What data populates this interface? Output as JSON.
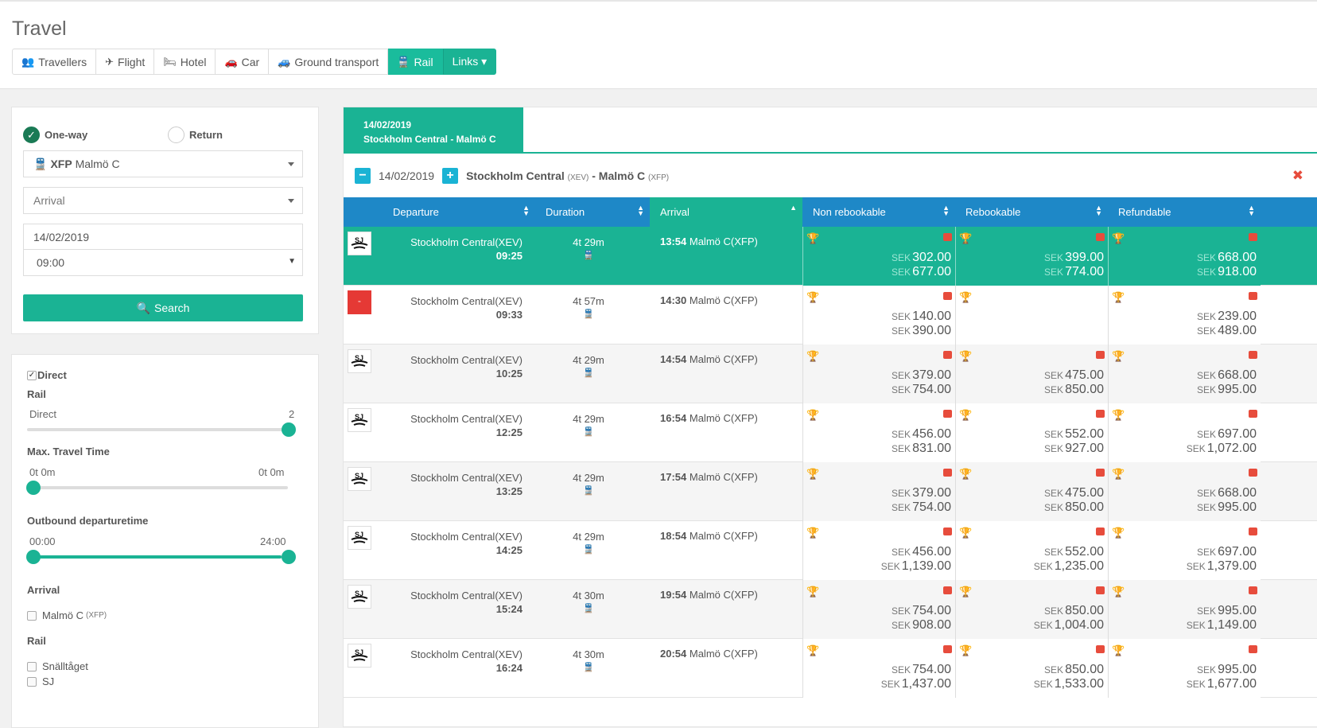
{
  "page_title": "Travel",
  "nav": [
    {
      "label": "Travellers",
      "icon": "users-icon",
      "glyph": "👥",
      "active": false
    },
    {
      "label": "Flight",
      "icon": "plane-icon",
      "glyph": "✈",
      "active": false
    },
    {
      "label": "Hotel",
      "icon": "bed-icon",
      "glyph": "🛏",
      "active": false
    },
    {
      "label": "Car",
      "icon": "car-icon",
      "glyph": "🚗",
      "active": false
    },
    {
      "label": "Ground transport",
      "icon": "car-icon",
      "glyph": "🚙",
      "active": false
    },
    {
      "label": "Rail",
      "icon": "train-icon",
      "glyph": "🚆",
      "active": true
    },
    {
      "label": "Links ▾",
      "icon": "",
      "glyph": "",
      "active": false
    }
  ],
  "search": {
    "oneway_label": "One-way",
    "return_label": "Return",
    "from_code": "XFP",
    "from_name": "Malmö C",
    "arrival_placeholder": "Arrival",
    "date": "14/02/2019",
    "time": "09:00",
    "button": "Search"
  },
  "filters": {
    "direct_label": "Direct",
    "rail_label": "Rail",
    "direct_small": "Direct",
    "direct_max": "2",
    "max_travel_time": "Max. Travel Time",
    "tt_min": "0t 0m",
    "tt_max": "0t 0m",
    "outbound_label": "Outbound departuretime",
    "out_min": "00:00",
    "out_max": "24:00",
    "arrival_label": "Arrival",
    "arrival_option": "Malmö C",
    "arrival_option_code": "(XFP)",
    "rail_label2": "Rail",
    "rail_options": [
      "Snälltåget",
      "SJ"
    ]
  },
  "results": {
    "tab_date": "14/02/2019",
    "tab_route": "Stockholm Central - Malmö C",
    "route_date": "14/02/2019",
    "route_from": "Stockholm Central",
    "route_from_code": "(XEV)",
    "route_sep": "-",
    "route_to": "Malmö C",
    "route_to_code": "(XFP)",
    "headers": {
      "departure": "Departure",
      "duration": "Duration",
      "arrival": "Arrival",
      "non_rebookable": "Non rebookable",
      "rebookable": "Rebookable",
      "refundable": "Refundable"
    },
    "currency": "SEK",
    "rows": [
      {
        "operator": "SJ",
        "dep_station": "Stockholm Central(XEV)",
        "dep_time": "09:25",
        "duration": "4t 29m",
        "arr_time": "13:54",
        "arr_station": "Malmö C(XFP)",
        "non": [
          "302.00",
          "677.00"
        ],
        "reb": [
          "399.00",
          "774.00"
        ],
        "ref": [
          "668.00",
          "918.00"
        ]
      },
      {
        "operator": "Snälltåget",
        "dep_station": "Stockholm Central(XEV)",
        "dep_time": "09:33",
        "duration": "4t 57m",
        "arr_time": "14:30",
        "arr_station": "Malmö C(XFP)",
        "non": [
          "140.00",
          "390.00"
        ],
        "reb": [],
        "ref": [
          "239.00",
          "489.00"
        ]
      },
      {
        "operator": "SJ",
        "dep_station": "Stockholm Central(XEV)",
        "dep_time": "10:25",
        "duration": "4t 29m",
        "arr_time": "14:54",
        "arr_station": "Malmö C(XFP)",
        "non": [
          "379.00",
          "754.00"
        ],
        "reb": [
          "475.00",
          "850.00"
        ],
        "ref": [
          "668.00",
          "995.00"
        ]
      },
      {
        "operator": "SJ",
        "dep_station": "Stockholm Central(XEV)",
        "dep_time": "12:25",
        "duration": "4t 29m",
        "arr_time": "16:54",
        "arr_station": "Malmö C(XFP)",
        "non": [
          "456.00",
          "831.00"
        ],
        "reb": [
          "552.00",
          "927.00"
        ],
        "ref": [
          "697.00",
          "1,072.00"
        ]
      },
      {
        "operator": "SJ",
        "dep_station": "Stockholm Central(XEV)",
        "dep_time": "13:25",
        "duration": "4t 29m",
        "arr_time": "17:54",
        "arr_station": "Malmö C(XFP)",
        "non": [
          "379.00",
          "754.00"
        ],
        "reb": [
          "475.00",
          "850.00"
        ],
        "ref": [
          "668.00",
          "995.00"
        ]
      },
      {
        "operator": "SJ",
        "dep_station": "Stockholm Central(XEV)",
        "dep_time": "14:25",
        "duration": "4t 29m",
        "arr_time": "18:54",
        "arr_station": "Malmö C(XFP)",
        "non": [
          "456.00",
          "1,139.00"
        ],
        "reb": [
          "552.00",
          "1,235.00"
        ],
        "ref": [
          "697.00",
          "1,379.00"
        ]
      },
      {
        "operator": "SJ",
        "dep_station": "Stockholm Central(XEV)",
        "dep_time": "15:24",
        "duration": "4t 30m",
        "arr_time": "19:54",
        "arr_station": "Malmö C(XFP)",
        "non": [
          "754.00",
          "908.00"
        ],
        "reb": [
          "850.00",
          "1,004.00"
        ],
        "ref": [
          "995.00",
          "1,149.00"
        ]
      },
      {
        "operator": "SJ",
        "dep_station": "Stockholm Central(XEV)",
        "dep_time": "16:24",
        "duration": "4t 30m",
        "arr_time": "20:54",
        "arr_station": "Malmö C(XFP)",
        "non": [
          "754.00",
          "1,437.00"
        ],
        "reb": [
          "850.00",
          "1,533.00"
        ],
        "ref": [
          "995.00",
          "1,677.00"
        ]
      }
    ]
  },
  "colors": {
    "accent": "#1ab394",
    "header_blue": "#1e88c7",
    "close": "#e74c3c"
  }
}
